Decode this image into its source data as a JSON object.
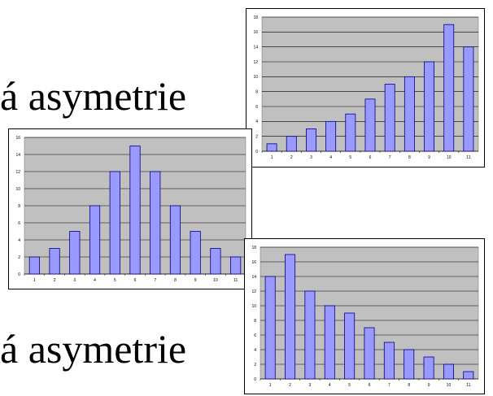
{
  "texts": {
    "top": "á asymetrie",
    "bottom": "á asymetrie"
  },
  "colors": {
    "plot_bg": "#c0c0c0",
    "bar_fill": "#9999ff",
    "bar_stroke": "#000080",
    "grid": "#000000"
  },
  "chart_data": [
    {
      "type": "bar",
      "title": "",
      "xlabel": "",
      "ylabel": "",
      "categories": [
        "1",
        "2",
        "3",
        "4",
        "5",
        "6",
        "7",
        "8",
        "9",
        "10",
        "11"
      ],
      "values": [
        1,
        2,
        3,
        4,
        5,
        7,
        9,
        10,
        12,
        17,
        14
      ],
      "ylim": [
        0,
        18
      ],
      "yticks": [
        0,
        2,
        4,
        6,
        8,
        10,
        12,
        14,
        16,
        18
      ],
      "grid": true,
      "legend": "none"
    },
    {
      "type": "bar",
      "title": "",
      "xlabel": "",
      "ylabel": "",
      "categories": [
        "1",
        "2",
        "3",
        "4",
        "5",
        "6",
        "7",
        "8",
        "9",
        "10",
        "11"
      ],
      "values": [
        2,
        3,
        5,
        8,
        12,
        15,
        12,
        8,
        5,
        3,
        2
      ],
      "ylim": [
        0,
        16
      ],
      "yticks": [
        0,
        2,
        4,
        6,
        8,
        10,
        12,
        14,
        16
      ],
      "grid": true,
      "legend": "none"
    },
    {
      "type": "bar",
      "title": "",
      "xlabel": "",
      "ylabel": "",
      "categories": [
        "1",
        "2",
        "3",
        "4",
        "5",
        "6",
        "7",
        "8",
        "9",
        "10",
        "11"
      ],
      "values": [
        14,
        17,
        12,
        10,
        9,
        7,
        5,
        4,
        3,
        2,
        1
      ],
      "ylim": [
        0,
        18
      ],
      "yticks": [
        0,
        2,
        4,
        6,
        8,
        10,
        12,
        14,
        16,
        18
      ],
      "grid": true,
      "legend": "none"
    }
  ]
}
